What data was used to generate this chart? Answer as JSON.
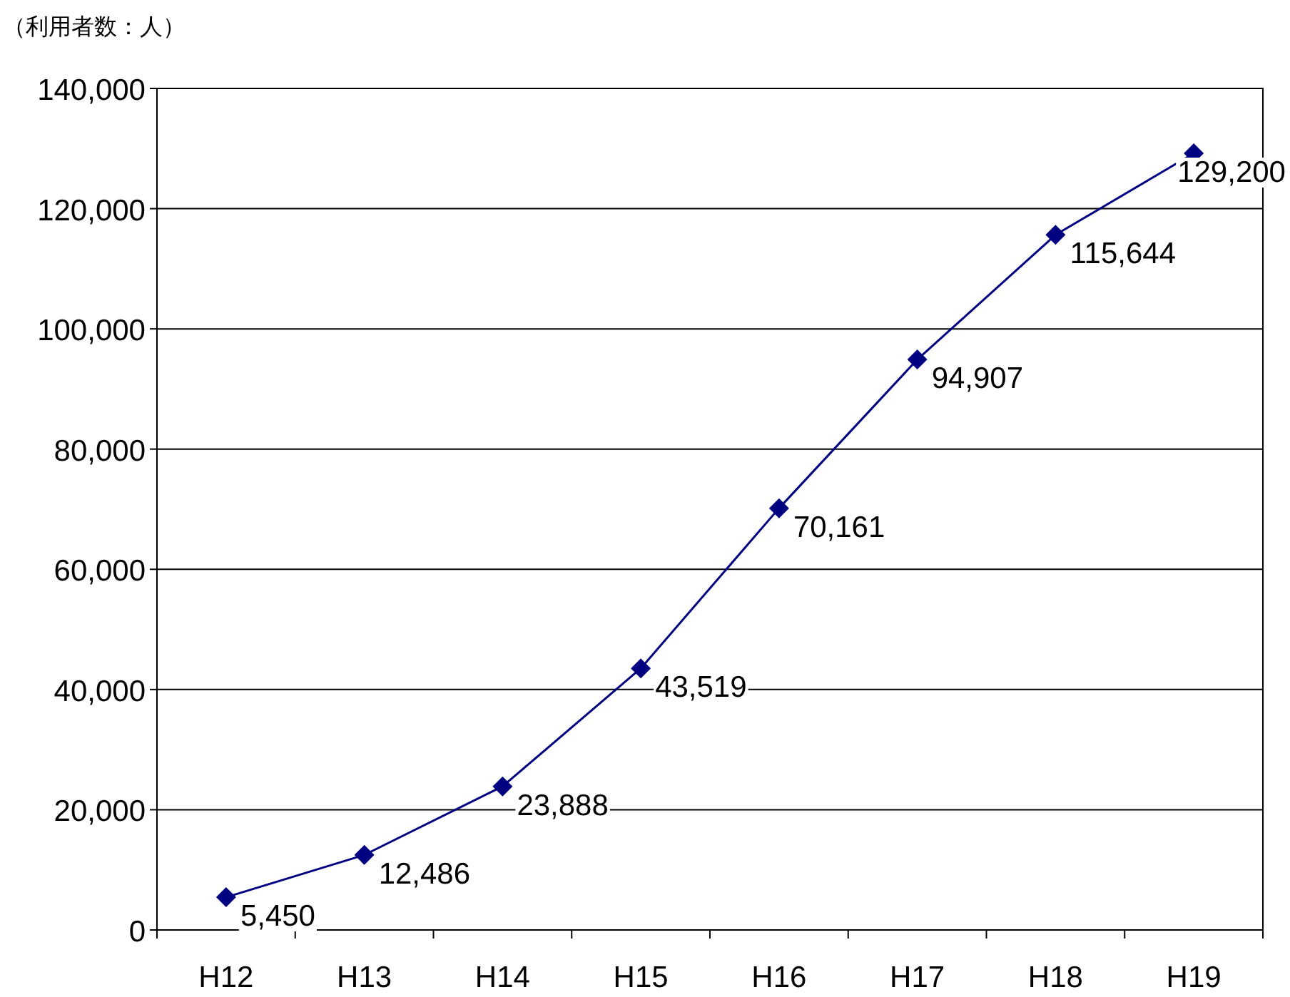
{
  "chart_data": {
    "type": "line",
    "ylabel": "（利用者数：人）",
    "categories": [
      "H12",
      "H13",
      "H14",
      "H15",
      "H16",
      "H17",
      "H18",
      "H19"
    ],
    "series": [
      {
        "color": "#000080",
        "values": [
          5450,
          12486,
          23888,
          43519,
          70161,
          94907,
          115644,
          129200
        ],
        "value_labels": [
          "5,450",
          "12,486",
          "23,888",
          "43,519",
          "70,161",
          "94,907",
          "115,644",
          "129,200"
        ]
      }
    ],
    "ylim": [
      0,
      140000
    ],
    "yticks": [
      0,
      {
        "value": 20000,
        "label": "20,000"
      },
      {
        "value": 40000,
        "label": "40,000"
      },
      {
        "value": 60000,
        "label": "60,000"
      },
      {
        "value": 80000,
        "label": "80,000"
      },
      {
        "value": 100000,
        "label": "100,000"
      },
      {
        "value": 120000,
        "label": "120,000"
      },
      {
        "value": 140000,
        "label": "140,000"
      }
    ],
    "grid": "y",
    "marker": "diamond"
  }
}
